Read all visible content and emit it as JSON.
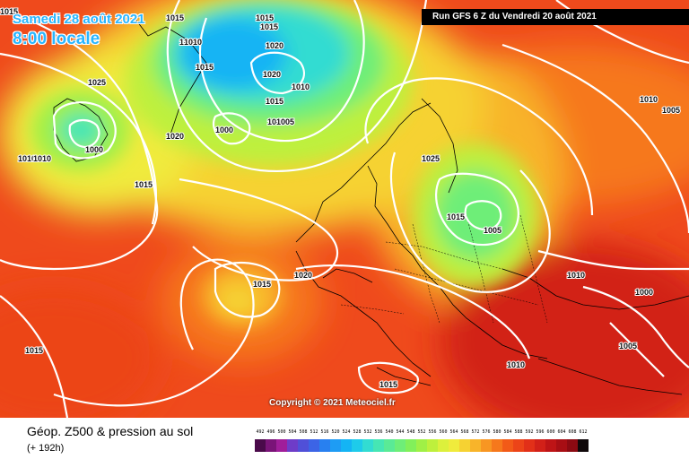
{
  "header": {
    "date": "Samedi 28 août 2021",
    "time": "8:00 locale",
    "run_info": "Run GFS 6 Z du Vendredi 20 août 2021"
  },
  "map": {
    "copyright": "Copyright © 2021 Meteociel.fr",
    "isobar_labels": [
      "1015",
      "1015",
      "1015",
      "1010",
      "1020",
      "1015",
      "1025",
      "1020",
      "1010",
      "1015",
      "1005",
      "1000",
      "1020",
      "1010",
      "1005",
      "1000",
      "1010",
      "1015",
      "1025",
      "1015",
      "1005",
      "1010",
      "1010",
      "1000",
      "1020",
      "1015",
      "1015",
      "1015",
      "1005",
      "1010",
      "1015",
      "1010",
      "1005"
    ]
  },
  "footer": {
    "title": "Géop. Z500 & pression au sol",
    "lead": "(+ 192h)"
  },
  "legend": {
    "labels": [
      "492",
      "496",
      "500",
      "504",
      "508",
      "512",
      "516",
      "520",
      "524",
      "528",
      "532",
      "536",
      "540",
      "544",
      "548",
      "552",
      "556",
      "560",
      "564",
      "568",
      "572",
      "576",
      "580",
      "584",
      "588",
      "592",
      "596",
      "600",
      "604",
      "608",
      "612"
    ],
    "colors": [
      "#4a0a4a",
      "#7a1478",
      "#a01e9a",
      "#6e3cc8",
      "#5050d8",
      "#3c64e6",
      "#2880f0",
      "#1e9cf4",
      "#14b4f4",
      "#1ecbea",
      "#32dcd2",
      "#46e6b4",
      "#5aea96",
      "#6eee78",
      "#82f05a",
      "#a0f046",
      "#bef03c",
      "#dcf03c",
      "#f0eb3c",
      "#f6d232",
      "#f8b42a",
      "#f89622",
      "#f6781c",
      "#f25a18",
      "#ec4418",
      "#e23018",
      "#d22018",
      "#be1416",
      "#a80e14",
      "#8c0a12",
      "#10080a"
    ]
  }
}
